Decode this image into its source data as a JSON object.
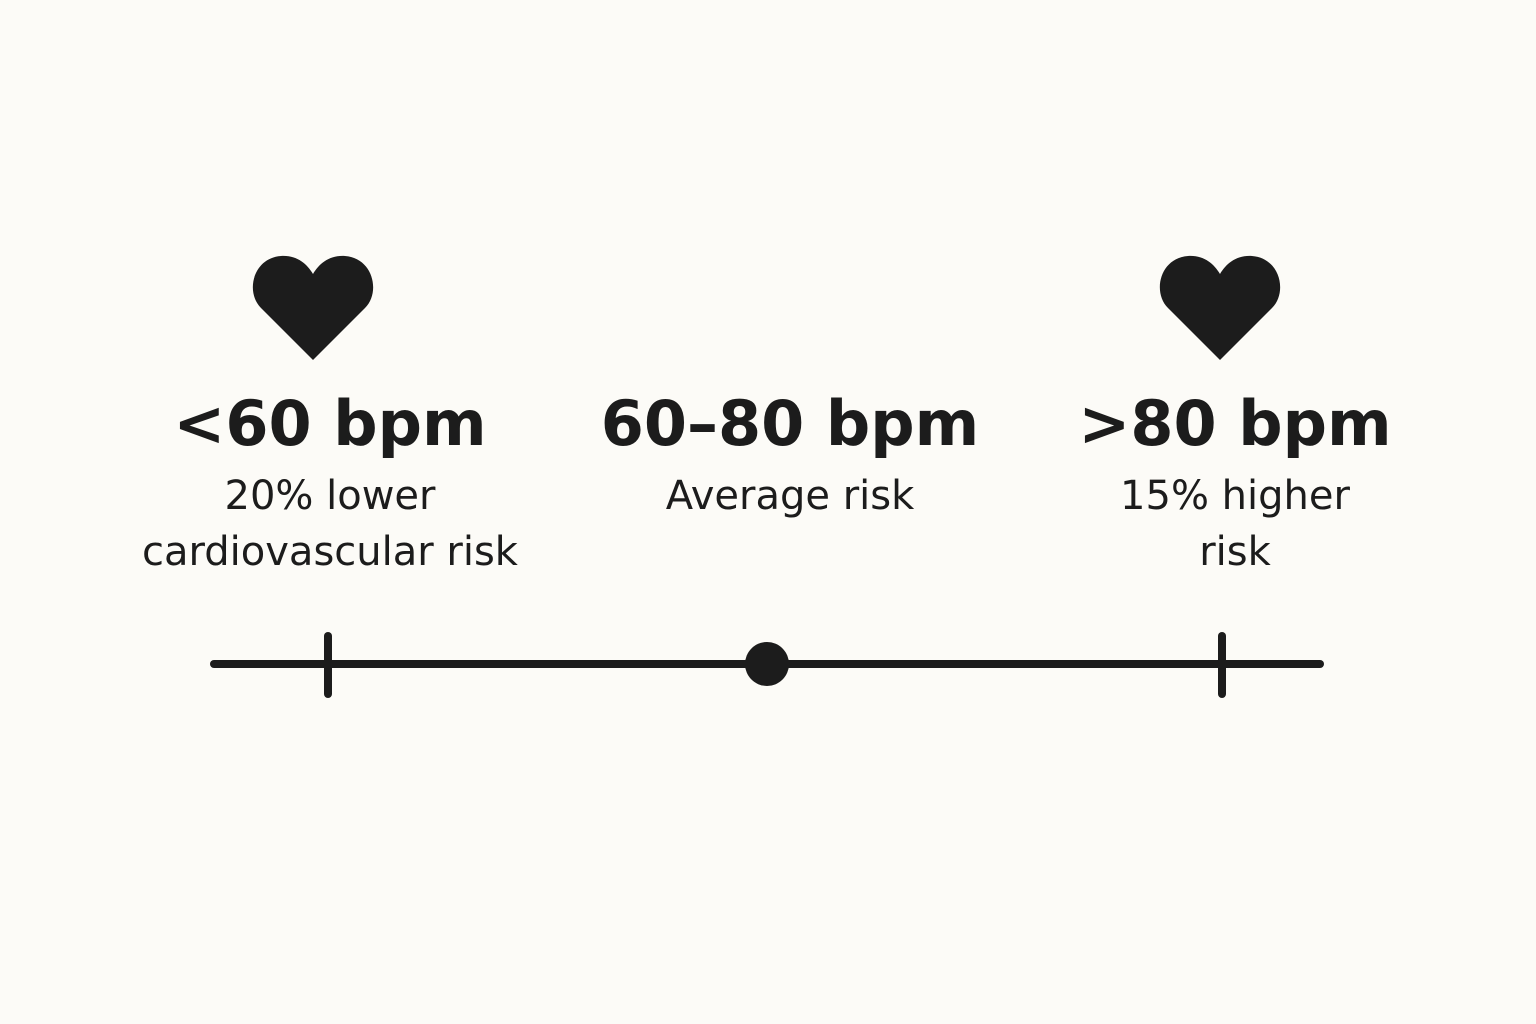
{
  "zones": [
    {
      "range": "<60 bpm",
      "description_lines": [
        "20% lower",
        "cardiovascular risk"
      ],
      "icon": "heart-icon"
    },
    {
      "range": "60–80 bpm",
      "description_lines": [
        "Average risk"
      ],
      "icon": null
    },
    {
      "range": ">80 bpm",
      "description_lines": [
        "15% higher",
        "risk"
      ],
      "icon": "heart-icon"
    }
  ],
  "scale": {
    "markers": [
      "tick",
      "dot",
      "tick"
    ],
    "color": "#1c1c1c"
  },
  "colors": {
    "background": "#fcfbf7",
    "ink": "#1c1c1c"
  }
}
